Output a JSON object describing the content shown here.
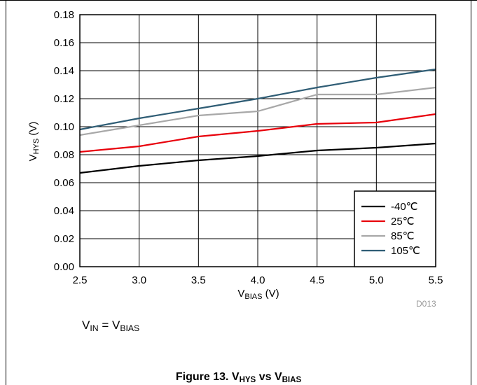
{
  "chart_data": {
    "type": "line",
    "x": [
      2.5,
      3.0,
      3.5,
      4.0,
      4.5,
      5.0,
      5.5
    ],
    "xlim": [
      2.5,
      5.5
    ],
    "ylim": [
      0,
      0.18
    ],
    "xticks": [
      "2.5",
      "3.0",
      "3.5",
      "4.0",
      "4.5",
      "5.0",
      "5.5"
    ],
    "yticks": [
      "0.00",
      "0.02",
      "0.04",
      "0.06",
      "0.08",
      "0.10",
      "0.12",
      "0.14",
      "0.16",
      "0.18"
    ],
    "ylabel": {
      "main": "V",
      "sub": "HYS",
      "unit": " (V)"
    },
    "xlabel": {
      "main": "V",
      "sub": "BIAS",
      "unit": " (V)"
    },
    "grid": true,
    "legend_position": "bottom-right",
    "series": [
      {
        "name": "-40℃",
        "color": "#000000",
        "values": [
          0.067,
          0.072,
          0.076,
          0.079,
          0.083,
          0.085,
          0.088
        ]
      },
      {
        "name": "25℃",
        "color": "#e8000b",
        "values": [
          0.082,
          0.086,
          0.093,
          0.097,
          0.102,
          0.103,
          0.109
        ]
      },
      {
        "name": "85℃",
        "color": "#a8a8a8",
        "values": [
          0.094,
          0.101,
          0.108,
          0.111,
          0.123,
          0.123,
          0.128
        ]
      },
      {
        "name": "105℃",
        "color": "#2f5d75",
        "values": [
          0.098,
          0.106,
          0.113,
          0.12,
          0.128,
          0.135,
          0.141
        ]
      }
    ]
  },
  "figure_code": "D013",
  "condition": {
    "a_main": "V",
    "a_sub": "IN",
    "eq": " = ",
    "b_main": "V",
    "b_sub": "BIAS"
  },
  "caption": {
    "prefix": "Figure 13. ",
    "a_main": "V",
    "a_sub": "HYS",
    "mid": " vs ",
    "b_main": "V",
    "b_sub": "BIAS"
  }
}
